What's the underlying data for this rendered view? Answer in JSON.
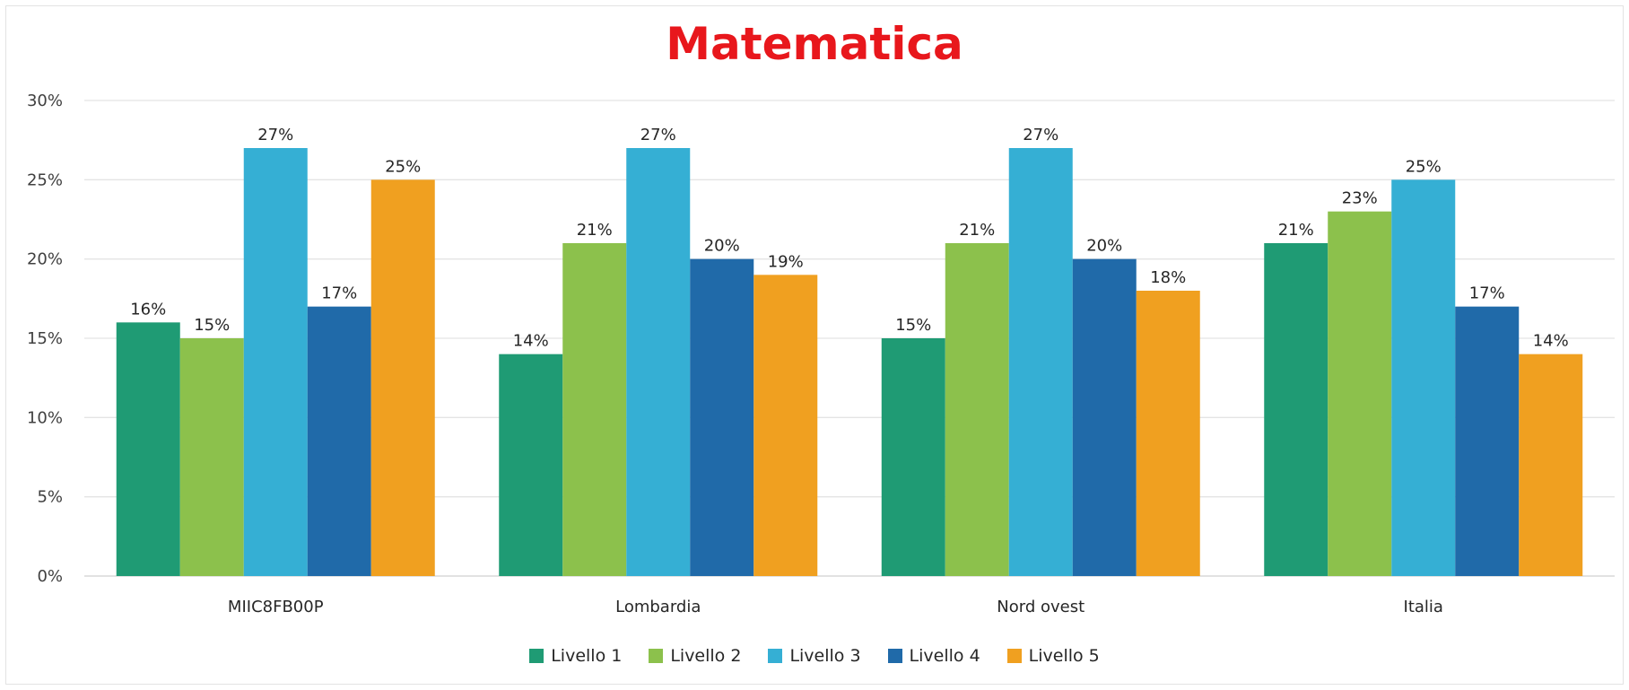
{
  "chart_data": {
    "type": "bar",
    "title": "Matematica",
    "categories": [
      "MIIC8FB00P",
      "Lombardia",
      "Nord ovest",
      "Italia"
    ],
    "series": [
      {
        "name": "Livello 1",
        "color": "#1f9b74",
        "values": [
          16,
          14,
          15,
          21
        ]
      },
      {
        "name": "Livello 2",
        "color": "#8cc14c",
        "values": [
          15,
          21,
          21,
          23
        ]
      },
      {
        "name": "Livello 3",
        "color": "#35afd4",
        "values": [
          27,
          27,
          27,
          25
        ]
      },
      {
        "name": "Livello 4",
        "color": "#206aa9",
        "values": [
          17,
          20,
          20,
          17
        ]
      },
      {
        "name": "Livello 5",
        "color": "#f0a020",
        "values": [
          25,
          19,
          18,
          14
        ]
      }
    ],
    "ylim": [
      0,
      30
    ],
    "yticks": [
      "0%",
      "5%",
      "10%",
      "15%",
      "20%",
      "25%",
      "30%"
    ],
    "value_suffix": "%",
    "grid": true,
    "legend_position": "bottom"
  }
}
